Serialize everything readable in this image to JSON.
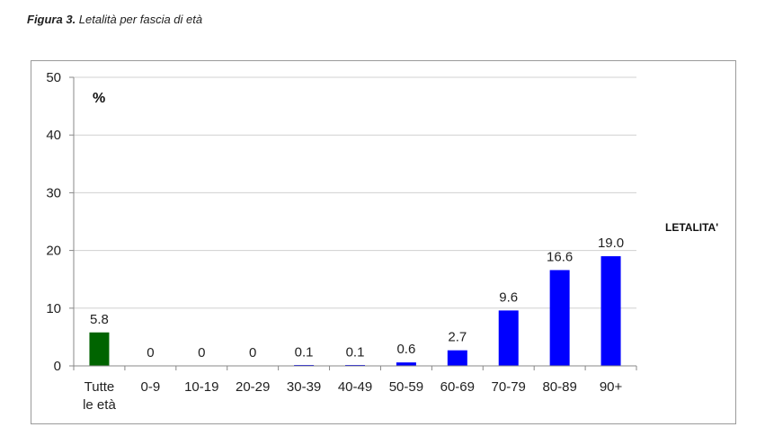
{
  "caption": {
    "prefix": "Figura 3.",
    "text": " Letalità per fascia di età"
  },
  "chart_data": {
    "type": "bar",
    "categories": [
      "Tutte le età",
      "0-9",
      "10-19",
      "20-29",
      "30-39",
      "40-49",
      "50-59",
      "60-69",
      "70-79",
      "80-89",
      "90+"
    ],
    "category_lines": [
      [
        "Tutte",
        "le età"
      ],
      [
        "0-9"
      ],
      [
        "10-19"
      ],
      [
        "20-29"
      ],
      [
        "30-39"
      ],
      [
        "40-49"
      ],
      [
        "50-59"
      ],
      [
        "60-69"
      ],
      [
        "70-79"
      ],
      [
        "80-89"
      ],
      [
        "90+"
      ]
    ],
    "values": [
      5.8,
      0,
      0,
      0,
      0.1,
      0.1,
      0.6,
      2.7,
      9.6,
      16.6,
      19.0
    ],
    "value_labels": [
      "5.8",
      "0",
      "0",
      "0",
      "0.1",
      "0.1",
      "0.6",
      "2.7",
      "9.6",
      "16.6",
      "19.0"
    ],
    "bar_colors": [
      "#006400",
      "#0000ff",
      "#0000ff",
      "#0000ff",
      "#0000ff",
      "#0000ff",
      "#0000ff",
      "#0000ff",
      "#0000ff",
      "#0000ff",
      "#0000ff"
    ],
    "ylabel": "%",
    "legend": "LETALITA'",
    "ylim": [
      0,
      50
    ],
    "yticks": [
      0,
      10,
      20,
      30,
      40,
      50
    ],
    "grid": true
  }
}
